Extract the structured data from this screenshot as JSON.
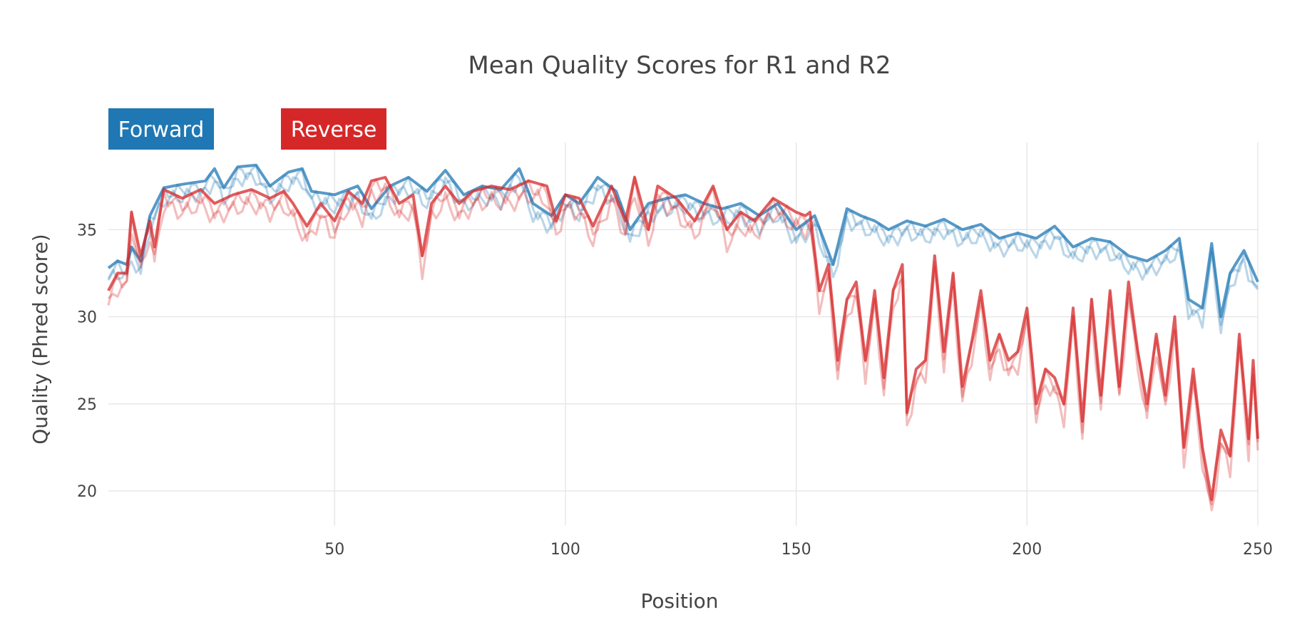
{
  "chart_data": {
    "type": "line",
    "title": "Mean Quality Scores for R1 and R2",
    "xlabel": "Position",
    "ylabel": "Quality (Phred score)",
    "xlim": [
      1,
      250
    ],
    "ylim": [
      18,
      40
    ],
    "xticks": [
      50,
      100,
      150,
      200,
      250
    ],
    "yticks": [
      20,
      25,
      30,
      35
    ],
    "grid": true,
    "legend_position": "top-left",
    "legend": [
      {
        "label": "Forward",
        "color": "#1f77b4"
      },
      {
        "label": "Reverse",
        "color": "#d62728"
      }
    ],
    "colors": {
      "forward": "#1f77b4",
      "reverse": "#d62728",
      "grid": "#e6e6e6",
      "text": "#444444"
    },
    "series": [
      {
        "group": "forward",
        "anchors": [
          [
            1,
            32.8
          ],
          [
            3,
            33.2
          ],
          [
            5,
            33.0
          ],
          [
            6,
            34.0
          ],
          [
            8,
            33.2
          ],
          [
            10,
            35.8
          ],
          [
            13,
            37.4
          ],
          [
            17,
            37.6
          ],
          [
            22,
            37.8
          ],
          [
            24,
            38.5
          ],
          [
            26,
            37.4
          ],
          [
            29,
            38.6
          ],
          [
            33,
            38.7
          ],
          [
            36,
            37.5
          ],
          [
            40,
            38.3
          ],
          [
            43,
            38.5
          ],
          [
            45,
            37.2
          ],
          [
            50,
            37.0
          ],
          [
            55,
            37.5
          ],
          [
            58,
            36.2
          ],
          [
            62,
            37.5
          ],
          [
            66,
            38.0
          ],
          [
            70,
            37.2
          ],
          [
            74,
            38.4
          ],
          [
            78,
            37.0
          ],
          [
            82,
            37.5
          ],
          [
            86,
            37.3
          ],
          [
            90,
            38.5
          ],
          [
            93,
            36.5
          ],
          [
            97,
            35.8
          ],
          [
            100,
            37.0
          ],
          [
            103,
            36.5
          ],
          [
            107,
            38.0
          ],
          [
            111,
            37.2
          ],
          [
            114,
            35.0
          ],
          [
            118,
            36.5
          ],
          [
            122,
            36.8
          ],
          [
            126,
            37.0
          ],
          [
            130,
            36.5
          ],
          [
            134,
            36.2
          ],
          [
            138,
            36.5
          ],
          [
            142,
            35.8
          ],
          [
            146,
            36.5
          ],
          [
            150,
            35.0
          ],
          [
            154,
            35.8
          ],
          [
            158,
            33.0
          ],
          [
            161,
            36.2
          ],
          [
            164,
            35.8
          ],
          [
            167,
            35.5
          ],
          [
            170,
            35.0
          ],
          [
            174,
            35.5
          ],
          [
            178,
            35.2
          ],
          [
            182,
            35.6
          ],
          [
            186,
            35.0
          ],
          [
            190,
            35.3
          ],
          [
            194,
            34.5
          ],
          [
            198,
            34.8
          ],
          [
            202,
            34.5
          ],
          [
            206,
            35.2
          ],
          [
            210,
            34.0
          ],
          [
            214,
            34.5
          ],
          [
            218,
            34.3
          ],
          [
            222,
            33.5
          ],
          [
            226,
            33.2
          ],
          [
            230,
            33.8
          ],
          [
            233,
            34.5
          ],
          [
            235,
            31.0
          ],
          [
            238,
            30.5
          ],
          [
            240,
            34.2
          ],
          [
            242,
            30.0
          ],
          [
            244,
            32.5
          ],
          [
            247,
            33.8
          ],
          [
            250,
            32.0
          ]
        ],
        "trace_offsets": [
          0,
          -0.35,
          -0.7
        ],
        "wiggle": [
          0.35,
          0.4,
          0.45
        ]
      },
      {
        "group": "reverse",
        "anchors": [
          [
            1,
            31.5
          ],
          [
            3,
            32.5
          ],
          [
            5,
            32.5
          ],
          [
            6,
            36.0
          ],
          [
            8,
            33.5
          ],
          [
            10,
            35.5
          ],
          [
            11,
            34.0
          ],
          [
            13,
            37.3
          ],
          [
            17,
            36.8
          ],
          [
            21,
            37.3
          ],
          [
            24,
            36.5
          ],
          [
            28,
            37.0
          ],
          [
            32,
            37.3
          ],
          [
            36,
            36.8
          ],
          [
            39,
            37.2
          ],
          [
            41,
            36.5
          ],
          [
            44,
            35.2
          ],
          [
            47,
            36.5
          ],
          [
            50,
            35.5
          ],
          [
            53,
            37.2
          ],
          [
            56,
            36.5
          ],
          [
            58,
            37.8
          ],
          [
            61,
            38.0
          ],
          [
            64,
            36.5
          ],
          [
            67,
            37.0
          ],
          [
            69,
            33.5
          ],
          [
            71,
            36.5
          ],
          [
            74,
            37.5
          ],
          [
            77,
            36.5
          ],
          [
            80,
            37.2
          ],
          [
            84,
            37.5
          ],
          [
            88,
            37.3
          ],
          [
            92,
            37.8
          ],
          [
            96,
            37.5
          ],
          [
            98,
            35.5
          ],
          [
            100,
            37.0
          ],
          [
            103,
            36.8
          ],
          [
            106,
            35.2
          ],
          [
            110,
            37.5
          ],
          [
            113,
            35.5
          ],
          [
            115,
            38.0
          ],
          [
            118,
            35.0
          ],
          [
            120,
            37.5
          ],
          [
            124,
            36.8
          ],
          [
            128,
            35.5
          ],
          [
            132,
            37.5
          ],
          [
            135,
            35.0
          ],
          [
            138,
            36.0
          ],
          [
            141,
            35.5
          ],
          [
            145,
            36.8
          ],
          [
            150,
            36.0
          ],
          [
            152,
            35.8
          ],
          [
            153,
            36.0
          ],
          [
            155,
            31.5
          ],
          [
            157,
            33.0
          ],
          [
            159,
            27.5
          ],
          [
            161,
            31.0
          ],
          [
            163,
            32.0
          ],
          [
            165,
            27.5
          ],
          [
            167,
            31.5
          ],
          [
            169,
            26.5
          ],
          [
            171,
            31.5
          ],
          [
            173,
            33.0
          ],
          [
            174,
            24.5
          ],
          [
            176,
            27.0
          ],
          [
            178,
            27.5
          ],
          [
            180,
            33.5
          ],
          [
            182,
            28.0
          ],
          [
            184,
            32.5
          ],
          [
            186,
            26.0
          ],
          [
            188,
            28.5
          ],
          [
            190,
            31.5
          ],
          [
            192,
            27.5
          ],
          [
            194,
            29.0
          ],
          [
            196,
            27.5
          ],
          [
            198,
            28.0
          ],
          [
            200,
            30.5
          ],
          [
            202,
            25.0
          ],
          [
            204,
            27.0
          ],
          [
            206,
            26.5
          ],
          [
            208,
            25.0
          ],
          [
            210,
            30.5
          ],
          [
            212,
            24.0
          ],
          [
            214,
            31.0
          ],
          [
            216,
            25.5
          ],
          [
            218,
            31.5
          ],
          [
            220,
            26.0
          ],
          [
            222,
            32.0
          ],
          [
            224,
            28.0
          ],
          [
            226,
            25.0
          ],
          [
            228,
            29.0
          ],
          [
            230,
            25.5
          ],
          [
            232,
            30.0
          ],
          [
            234,
            22.5
          ],
          [
            236,
            27.0
          ],
          [
            238,
            22.5
          ],
          [
            240,
            19.5
          ],
          [
            242,
            23.5
          ],
          [
            244,
            22.0
          ],
          [
            246,
            29.0
          ],
          [
            248,
            23.0
          ],
          [
            249,
            27.5
          ],
          [
            250,
            23.0
          ]
        ],
        "trace_offsets": [
          0,
          -0.4,
          -0.85
        ],
        "wiggle": [
          0.35,
          0.45,
          0.5
        ]
      }
    ]
  }
}
